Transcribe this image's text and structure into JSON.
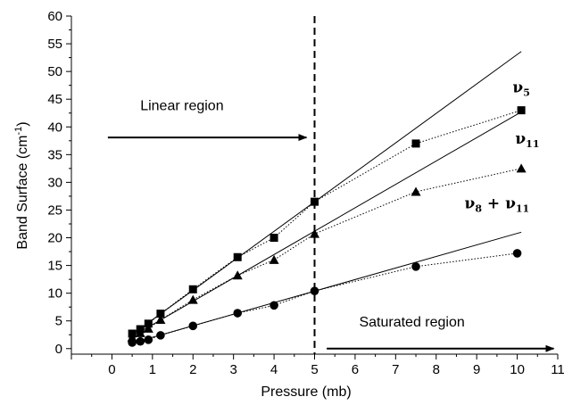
{
  "chart_data": {
    "type": "scatter",
    "xlabel": "Pressure (mb)",
    "ylabel": "Band Surface (cm",
    "ylabel_sup": "-1",
    "ylabel_close": ")",
    "xlim": [
      -1,
      11
    ],
    "ylim": [
      -1,
      60
    ],
    "xticks": [
      "0",
      "1",
      "2",
      "3",
      "4",
      "5",
      "6",
      "7",
      "8",
      "9",
      "10",
      "11"
    ],
    "yticks": [
      "0",
      "5",
      "10",
      "15",
      "20",
      "25",
      "30",
      "35",
      "40",
      "45",
      "50",
      "55",
      "60"
    ],
    "divider_x": 5,
    "regions": [
      {
        "text": "Linear region",
        "arrow_from_x": -0.1,
        "arrow_to_x": 4.8,
        "arrow_y": 38.1
      },
      {
        "text": "Saturated region",
        "arrow_from_x": 5.3,
        "arrow_to_x": 10.9,
        "arrow_y": 0
      }
    ],
    "series": [
      {
        "name": "ν5",
        "label_main": "ν",
        "label_sub": "5",
        "marker": "square",
        "x": [
          0.5,
          0.7,
          0.9,
          1.2,
          2.0,
          3.1,
          4.0,
          5.0,
          7.5,
          10.1
        ],
        "y": [
          2.7,
          3.5,
          4.5,
          6.3,
          10.7,
          16.5,
          20.0,
          26.5,
          37.0,
          43.0
        ],
        "fit": {
          "x": [
            0.5,
            10.1
          ],
          "y": [
            2.55,
            53.6
          ]
        },
        "label_pos": {
          "x": 10.1,
          "y": 46.2
        }
      },
      {
        "name": "ν11",
        "label_main": "ν",
        "label_sub": "11",
        "marker": "triangle",
        "x": [
          0.5,
          0.7,
          0.9,
          1.2,
          2.0,
          3.1,
          4.0,
          5.0,
          7.5,
          10.1
        ],
        "y": [
          2.0,
          2.8,
          3.6,
          5.2,
          8.8,
          13.2,
          16.0,
          20.7,
          28.3,
          32.5
        ],
        "fit": {
          "x": [
            0.5,
            10.1
          ],
          "y": [
            2.2,
            42.7
          ]
        },
        "label_pos": {
          "x": 10.25,
          "y": 37.0
        }
      },
      {
        "name": "ν8 + ν11",
        "label_main": "ν",
        "label_sub": "8",
        "label_mid": " + ",
        "label_main2": "ν",
        "label_sub2": "11",
        "marker": "circle",
        "x": [
          0.5,
          0.7,
          0.9,
          1.2,
          2.0,
          3.1,
          4.0,
          5.0,
          7.5,
          10.0
        ],
        "y": [
          1.1,
          1.3,
          1.6,
          2.4,
          4.1,
          6.4,
          7.8,
          10.4,
          14.8,
          17.2
        ],
        "fit": {
          "x": [
            0.5,
            10.1
          ],
          "y": [
            1.0,
            21.0
          ]
        },
        "label_pos": {
          "x": 9.5,
          "y": 25.3
        }
      }
    ]
  }
}
